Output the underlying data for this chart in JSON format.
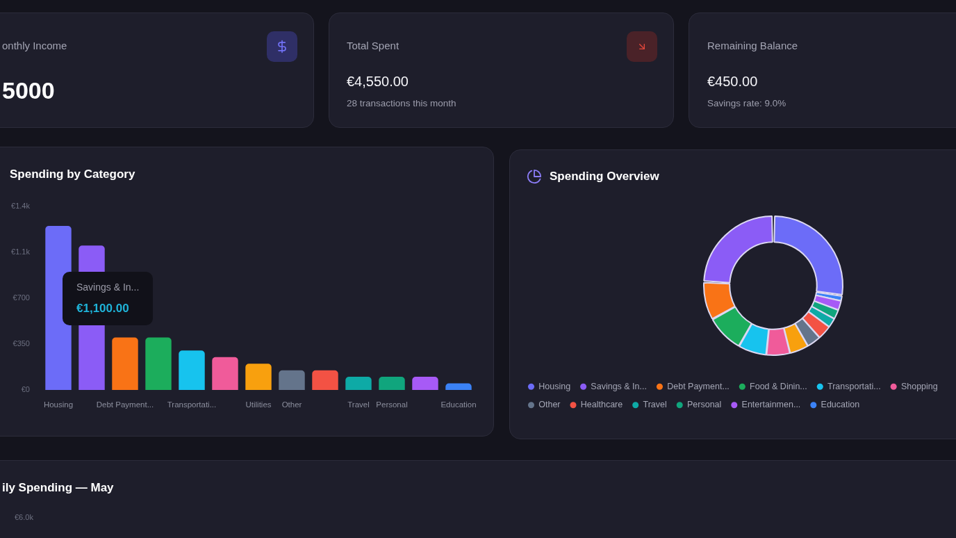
{
  "chart_data": [
    {
      "type": "other",
      "title": "onthly Income",
      "subtitle": "5000"
    },
    {
      "type": "other",
      "title": "Total Spent",
      "subtitle": "€4,550.00",
      "annotations": [
        "28 transactions this month"
      ]
    },
    {
      "type": "other",
      "title": "Remaining Balance",
      "subtitle": "€450.00",
      "annotations": [
        "Savings rate: 9.0%"
      ]
    },
    {
      "type": "bar",
      "title": "Spending by Category",
      "categories": [
        "Housing",
        null,
        "Debt Payment...",
        null,
        "Transportati...",
        null,
        "Utilities",
        "Other",
        null,
        "Travel",
        "Personal",
        null,
        "Education"
      ],
      "values": [
        1250,
        1100,
        400,
        400,
        300,
        250,
        200,
        150,
        150,
        100,
        100,
        100,
        50
      ],
      "colors": [
        "#6c6cf8",
        "#8b5cf6",
        "#f97316",
        "#1cad5c",
        "#17c3ee",
        "#f05b9a",
        "#f8a00e",
        "#64748b",
        "#f35244",
        "#0eaaa6",
        "#10a57d",
        "#a75af6",
        "#3b82f6"
      ],
      "ylim": [
        0,
        1400
      ],
      "yticks": [
        {
          "value": 0,
          "label": "€0"
        },
        {
          "value": 350,
          "label": "€350"
        },
        {
          "value": 700,
          "label": "€700"
        },
        {
          "value": 1050,
          "label": "€1.1k"
        },
        {
          "value": 1400,
          "label": "€1.4k"
        }
      ],
      "value_labels": [
        null,
        "€1,100.00",
        null,
        null,
        null,
        null,
        null,
        null,
        null,
        null,
        null,
        null,
        null
      ],
      "annotations": [
        "Savings & In..."
      ]
    },
    {
      "type": "donut",
      "title": "Spending Overview",
      "categories": [
        "Housing",
        "Savings & In...",
        "Debt Payment...",
        "Food & Dinin...",
        "Transportati...",
        "Shopping",
        null,
        "Other",
        "Healthcare",
        "Travel",
        "Personal",
        "Entertainmen...",
        "Education"
      ],
      "values": [
        27.4,
        24.2,
        8.8,
        8.8,
        6.6,
        5.5,
        4.4,
        3.3,
        3.3,
        2.2,
        2.2,
        2.2,
        1.1
      ],
      "colors": [
        "#6c6cf8",
        "#8b5cf6",
        "#f97316",
        "#1cad5c",
        "#17c3ee",
        "#f05b9a",
        "#f8a00e",
        "#64748b",
        "#f35244",
        "#0eaaa6",
        "#10a57d",
        "#a75af6",
        "#3b82f6"
      ],
      "legend": "bottom"
    },
    {
      "type": "other",
      "title": "ily Spending — May",
      "annotations": [
        "€6.0k"
      ]
    }
  ]
}
